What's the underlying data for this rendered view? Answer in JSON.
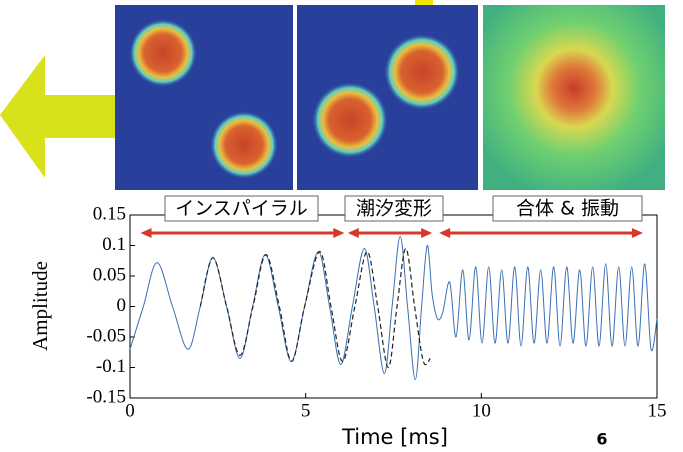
{
  "chart_data": {
    "type": "line",
    "xlabel": "Time [ms]",
    "ylabel": "Amplitude",
    "page_number": "6",
    "xlim": [
      0,
      15
    ],
    "ylim": [
      -0.15,
      0.15
    ],
    "xticks": [
      0,
      5,
      10,
      15
    ],
    "yticks": [
      0.15,
      0.1,
      0.05,
      0,
      -0.05,
      -0.1,
      -0.15
    ],
    "phases": [
      {
        "label": "インスパイラル",
        "range": [
          0.3,
          6.1
        ]
      },
      {
        "label": "潮汐変形",
        "range": [
          6.2,
          8.6
        ]
      },
      {
        "label": "合体 & 振動",
        "range": [
          8.8,
          14.6
        ]
      }
    ],
    "series": [
      {
        "color": "#3a6fb5",
        "dash": false,
        "x": [
          0,
          0.38,
          0.77,
          1.21,
          1.65,
          2.0,
          2.36,
          2.75,
          3.13,
          3.49,
          3.85,
          4.22,
          4.59,
          4.97,
          5.36,
          5.68,
          6.0,
          6.33,
          6.67,
          6.95,
          7.24,
          7.46,
          7.69,
          7.9,
          8.12,
          8.3,
          8.46,
          8.6,
          8.75,
          8.9,
          9.1,
          9.28,
          9.47,
          9.65,
          9.84,
          10.02,
          10.21,
          10.39,
          10.58,
          10.76,
          10.95,
          11.13,
          11.32,
          11.5,
          11.69,
          11.87,
          12.06,
          12.24,
          12.43,
          12.61,
          12.8,
          12.98,
          13.17,
          13.35,
          13.54,
          13.72,
          13.91,
          14.09,
          14.28,
          14.46,
          14.65,
          14.83,
          15.0
        ],
        "values": [
          -0.07,
          0,
          0.072,
          0,
          -0.07,
          0,
          0.08,
          0,
          -0.085,
          0,
          0.085,
          0,
          -0.09,
          0,
          0.09,
          0,
          -0.095,
          0,
          0.095,
          0,
          -0.11,
          0,
          0.115,
          0,
          -0.12,
          0,
          0.1,
          0.02,
          -0.02,
          -0.01,
          0.04,
          -0.05,
          0.06,
          -0.055,
          0.065,
          -0.06,
          0.065,
          -0.06,
          0.06,
          -0.06,
          0.065,
          -0.065,
          0.065,
          -0.06,
          0.06,
          -0.06,
          0.065,
          -0.065,
          0.065,
          -0.06,
          0.06,
          -0.065,
          0.065,
          -0.065,
          0.07,
          -0.065,
          0.065,
          -0.065,
          0.065,
          -0.065,
          0.07,
          -0.07,
          -0.02
        ]
      },
      {
        "color": "#222222",
        "dash": true,
        "x": [
          2.0,
          2.36,
          2.75,
          3.13,
          3.5,
          3.87,
          4.25,
          4.6,
          4.97,
          5.4,
          5.72,
          6.05,
          6.4,
          6.75,
          7.05,
          7.35,
          7.6,
          7.85,
          8.1,
          8.35,
          8.55
        ],
        "values": [
          0,
          0.08,
          0,
          -0.08,
          0,
          0.085,
          0,
          -0.09,
          0,
          0.09,
          0,
          -0.09,
          0,
          0.09,
          0,
          -0.1,
          0,
          0.095,
          0,
          -0.09,
          -0.085
        ]
      }
    ]
  }
}
